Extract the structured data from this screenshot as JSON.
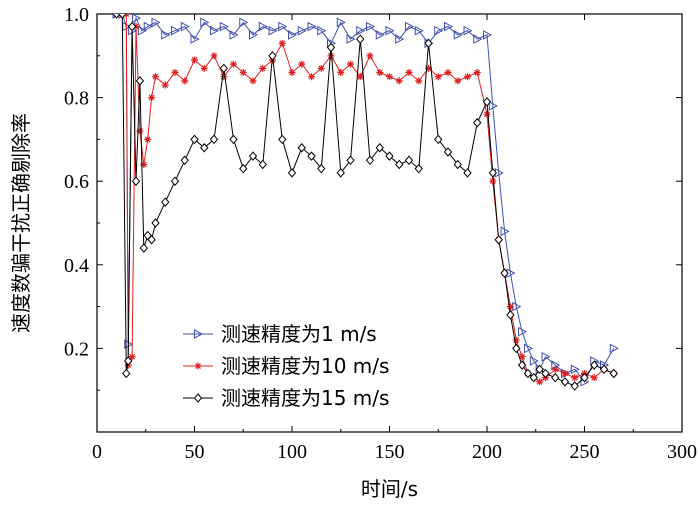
{
  "chart_data": {
    "type": "line",
    "title": "",
    "xlabel": "时间/s",
    "ylabel": "速度数骗干扰正确剔除率",
    "xlim": [
      0,
      300
    ],
    "ylim": [
      0,
      1.0
    ],
    "xticks": [
      0,
      50,
      100,
      150,
      200,
      250,
      300
    ],
    "yticks": [
      0.2,
      0.4,
      0.6,
      0.8,
      1.0
    ],
    "xtick_labels": [
      "0",
      "50",
      "100",
      "150",
      "200",
      "250",
      "300"
    ],
    "ytick_labels": [
      "0.2",
      "0.4",
      "0.6",
      "0.8",
      "1.0"
    ],
    "legend_position": "lower-left",
    "series": [
      {
        "name": "测速精度为1 m/s",
        "color": "#3f4fb0",
        "marker": "triangle-right",
        "x": [
          10,
          13,
          15,
          16,
          18,
          20,
          23,
          26,
          30,
          35,
          40,
          45,
          50,
          55,
          60,
          65,
          70,
          75,
          80,
          85,
          90,
          95,
          100,
          105,
          110,
          115,
          120,
          125,
          130,
          135,
          140,
          145,
          150,
          155,
          160,
          165,
          170,
          175,
          180,
          185,
          190,
          195,
          200,
          203,
          206,
          209,
          212,
          215,
          218,
          221,
          224,
          227,
          230,
          235,
          240,
          245,
          250,
          255,
          260,
          265
        ],
        "y": [
          1.0,
          1.0,
          0.97,
          0.21,
          0.96,
          0.99,
          0.96,
          0.97,
          0.98,
          0.95,
          0.96,
          0.97,
          0.94,
          0.98,
          0.96,
          0.97,
          0.95,
          0.98,
          0.95,
          0.97,
          0.96,
          0.97,
          0.95,
          0.96,
          0.97,
          0.96,
          0.93,
          0.98,
          0.94,
          0.96,
          0.97,
          0.95,
          0.96,
          0.94,
          0.97,
          0.96,
          0.93,
          0.96,
          0.97,
          0.95,
          0.96,
          0.94,
          0.95,
          0.78,
          0.62,
          0.48,
          0.38,
          0.3,
          0.24,
          0.2,
          0.17,
          0.15,
          0.18,
          0.16,
          0.14,
          0.15,
          0.12,
          0.17,
          0.16,
          0.2
        ]
      },
      {
        "name": "测速精度为10 m/s",
        "color": "#e02020",
        "marker": "star",
        "x": [
          10,
          13,
          15,
          16,
          18,
          20,
          22,
          24,
          26,
          28,
          30,
          35,
          40,
          45,
          50,
          55,
          60,
          65,
          70,
          75,
          80,
          85,
          90,
          95,
          100,
          105,
          110,
          115,
          120,
          125,
          130,
          135,
          140,
          145,
          150,
          155,
          160,
          165,
          170,
          175,
          180,
          185,
          190,
          195,
          200,
          203,
          206,
          209,
          212,
          215,
          218,
          221,
          224,
          227,
          230,
          235,
          240,
          245,
          250,
          255,
          260,
          265
        ],
        "y": [
          1.0,
          1.0,
          1.0,
          0.16,
          0.18,
          0.97,
          0.72,
          0.64,
          0.7,
          0.8,
          0.85,
          0.83,
          0.86,
          0.84,
          0.89,
          0.87,
          0.9,
          0.85,
          0.88,
          0.86,
          0.84,
          0.87,
          0.89,
          0.93,
          0.86,
          0.88,
          0.85,
          0.87,
          0.9,
          0.86,
          0.88,
          0.85,
          0.9,
          0.86,
          0.85,
          0.84,
          0.86,
          0.84,
          0.87,
          0.85,
          0.86,
          0.84,
          0.85,
          0.86,
          0.76,
          0.6,
          0.46,
          0.38,
          0.3,
          0.22,
          0.18,
          0.14,
          0.13,
          0.12,
          0.13,
          0.15,
          0.14,
          0.13,
          0.14,
          0.13,
          0.15,
          0.14
        ]
      },
      {
        "name": "测速精度为15 m/s",
        "color": "#000000",
        "marker": "diamond",
        "x": [
          10,
          13,
          15,
          16,
          18,
          20,
          22,
          24,
          26,
          28,
          30,
          35,
          40,
          45,
          50,
          55,
          60,
          65,
          70,
          75,
          80,
          85,
          90,
          95,
          100,
          105,
          110,
          115,
          120,
          125,
          130,
          135,
          140,
          145,
          150,
          155,
          160,
          165,
          170,
          175,
          180,
          185,
          190,
          195,
          200,
          203,
          206,
          209,
          212,
          215,
          218,
          221,
          224,
          227,
          230,
          235,
          240,
          245,
          250,
          255,
          260,
          265
        ],
        "y": [
          1.0,
          1.0,
          0.14,
          0.17,
          0.97,
          0.6,
          0.84,
          0.44,
          0.47,
          0.46,
          0.5,
          0.55,
          0.6,
          0.65,
          0.7,
          0.68,
          0.7,
          0.87,
          0.7,
          0.63,
          0.66,
          0.64,
          0.9,
          0.7,
          0.62,
          0.68,
          0.66,
          0.63,
          0.92,
          0.62,
          0.65,
          0.94,
          0.65,
          0.68,
          0.66,
          0.64,
          0.65,
          0.63,
          0.93,
          0.7,
          0.67,
          0.64,
          0.62,
          0.74,
          0.79,
          0.62,
          0.46,
          0.38,
          0.28,
          0.2,
          0.16,
          0.14,
          0.13,
          0.15,
          0.14,
          0.13,
          0.12,
          0.11,
          0.13,
          0.16,
          0.15,
          0.14
        ]
      }
    ]
  }
}
